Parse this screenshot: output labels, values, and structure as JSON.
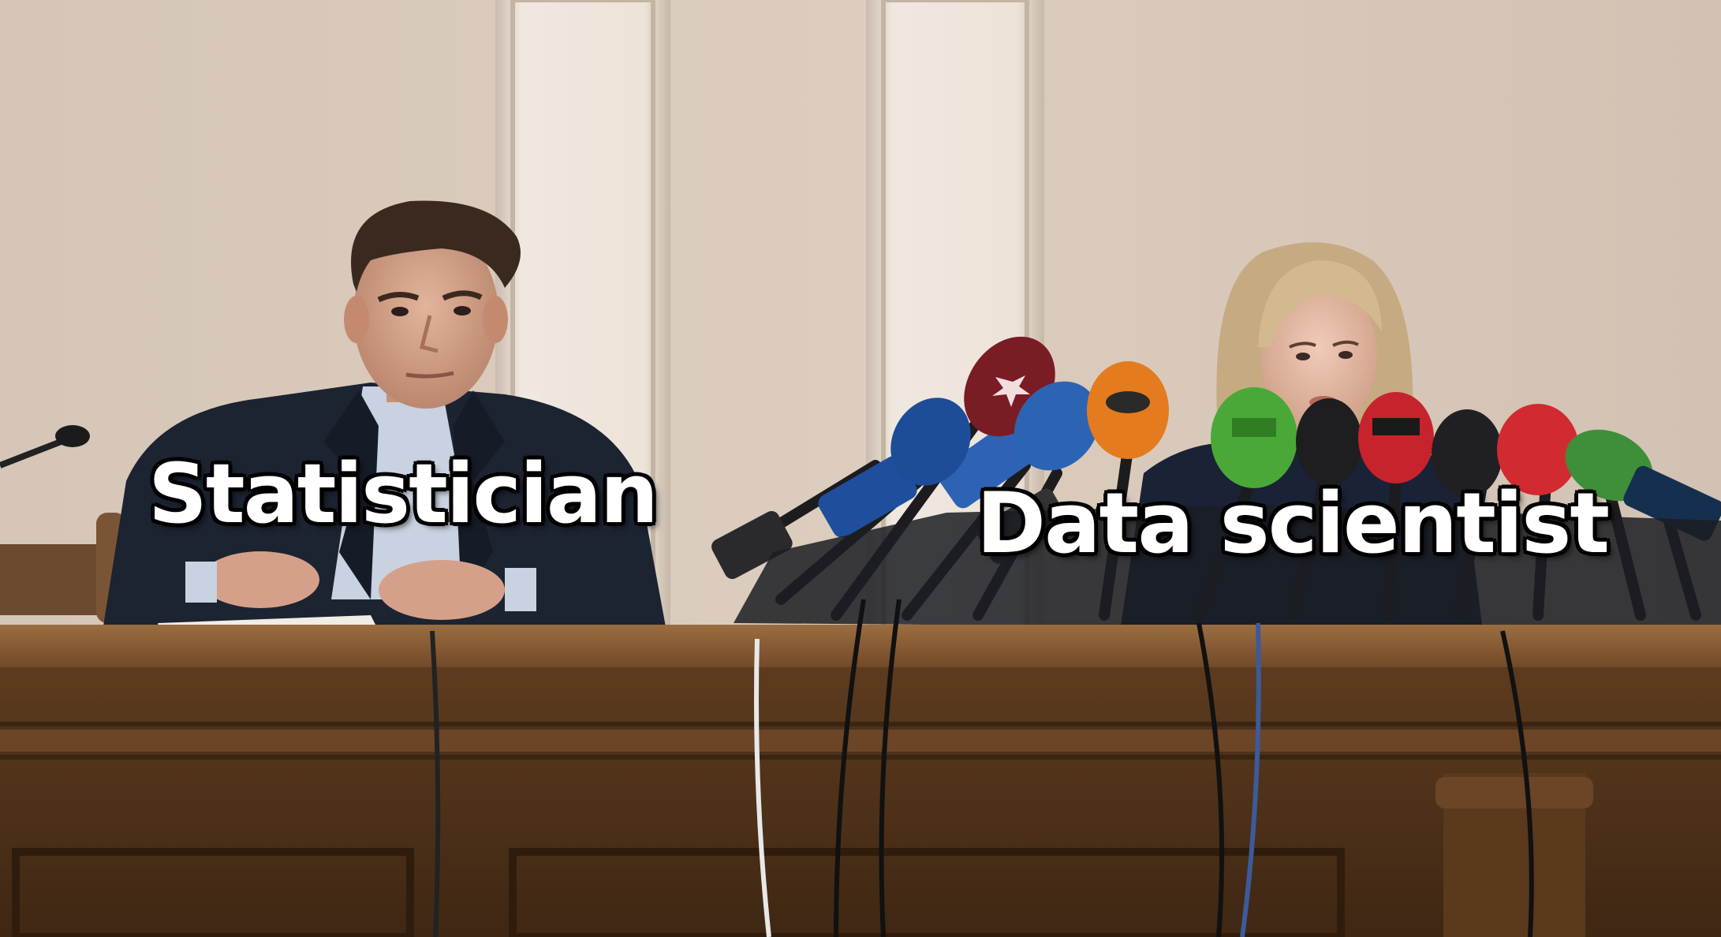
{
  "captions": {
    "left": "Statistician",
    "right": "Data scientist"
  },
  "colors": {
    "wall": "#d8c9bb",
    "pilaster": "#eae1d8",
    "desk": "#6f4a2a",
    "desk_dark": "#4a2f19",
    "suit": "#1d2433",
    "shirt": "#c9d3e1",
    "skin": "#d6a48a",
    "hair_man": "#3a2a20",
    "hair_woman": "#c8ad84"
  }
}
